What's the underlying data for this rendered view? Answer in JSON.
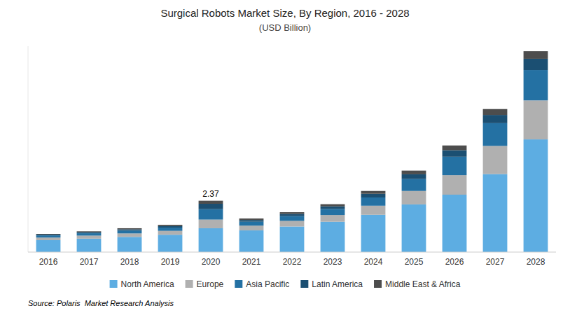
{
  "chart_data": {
    "type": "bar",
    "stacked": true,
    "title": "Surgical Robots Market Size, By Region, 2016 - 2028",
    "subtitle": "(USD Billion)",
    "categories": [
      "2016",
      "2017",
      "2018",
      "2019",
      "2020",
      "2021",
      "2022",
      "2023",
      "2024",
      "2025",
      "2026",
      "2027",
      "2028"
    ],
    "series": [
      {
        "name": "North America",
        "color": "#5DADE2",
        "values": [
          0.55,
          0.62,
          0.7,
          0.8,
          1.1,
          1.0,
          1.18,
          1.4,
          1.72,
          2.2,
          2.65,
          3.6,
          5.2
        ]
      },
      {
        "name": "Europe",
        "color": "#B0B0B0",
        "values": [
          0.12,
          0.14,
          0.16,
          0.18,
          0.4,
          0.22,
          0.26,
          0.31,
          0.42,
          0.62,
          0.9,
          1.3,
          1.8
        ]
      },
      {
        "name": "Asia Pacific",
        "color": "#2471A3",
        "values": [
          0.1,
          0.11,
          0.13,
          0.15,
          0.48,
          0.18,
          0.22,
          0.28,
          0.38,
          0.55,
          0.85,
          1.05,
          1.4
        ]
      },
      {
        "name": "Latin America",
        "color": "#1B4F72",
        "values": [
          0.04,
          0.05,
          0.06,
          0.07,
          0.25,
          0.08,
          0.1,
          0.12,
          0.17,
          0.22,
          0.3,
          0.38,
          0.52
        ]
      },
      {
        "name": "Middle East & Africa",
        "color": "#4D4D4D",
        "values": [
          0.03,
          0.04,
          0.05,
          0.06,
          0.14,
          0.07,
          0.08,
          0.1,
          0.13,
          0.17,
          0.22,
          0.27,
          0.35
        ]
      }
    ],
    "annotations": [
      {
        "category": "2020",
        "text": "2.37"
      }
    ],
    "source": "Source: Polaris  Market Research Analysis",
    "ylim": [
      0,
      9.5
    ],
    "tick_labels": "x",
    "grid": false,
    "legend": "bottom"
  }
}
